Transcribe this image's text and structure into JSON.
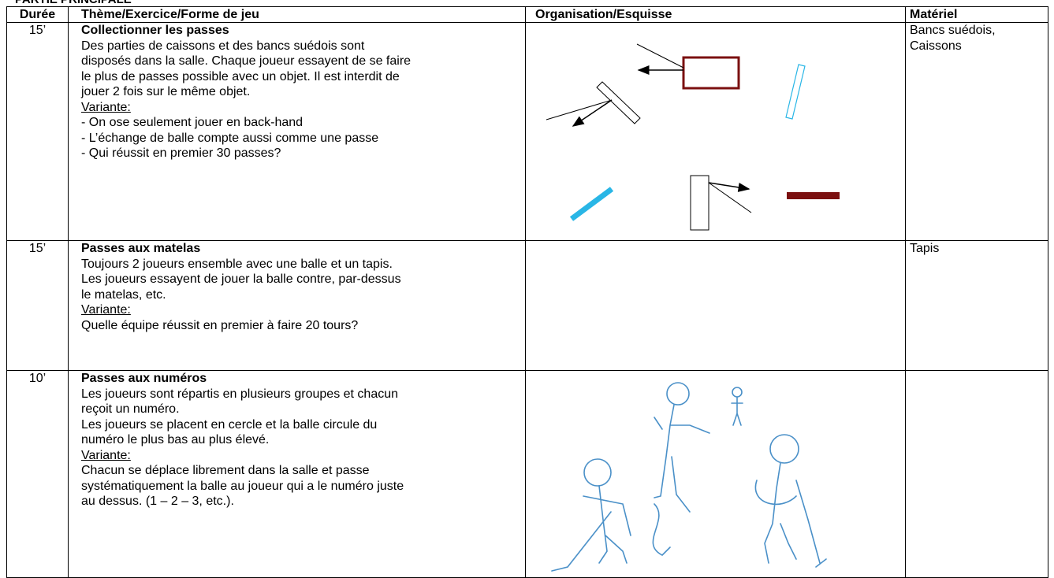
{
  "header": {
    "title": "PARTIE PRINCIPALE"
  },
  "table": {
    "columns": [
      "Durée",
      "Thème/Exercice/Forme de jeu",
      "Organisation/Esquisse",
      "Matériel"
    ],
    "rows": [
      {
        "duration": "15’",
        "title": "Collectionner les passes",
        "description": [
          "Des parties de caissons et des bancs suédois sont",
          "disposés dans la salle. Chaque joueur essayent de se faire",
          "le plus de passes possible avec un objet. Il est interdit de",
          "jouer 2 fois sur le même objet."
        ],
        "variant_label": "Variante:",
        "variant": [
          "- On ose seulement jouer en back-hand",
          "- L’échange de balle compte aussi comme une passe",
          "- Qui réussit en premier 30 passes?"
        ],
        "material": [
          "Bancs suédois,",
          "Caissons"
        ]
      },
      {
        "duration": "15’",
        "title": "Passes aux matelas",
        "description": [
          "Toujours 2 joueurs ensemble avec une balle et un tapis.",
          "Les joueurs essayent de jouer la balle contre, par-dessus",
          "le matelas, etc."
        ],
        "variant_label": "Variante:",
        "variant": [
          "Quelle équipe réussit en premier à faire 20 tours?"
        ],
        "material": [
          "Tapis"
        ]
      },
      {
        "duration": "10’",
        "title": "Passes aux numéros",
        "description": [
          "Les joueurs sont répartis en plusieurs groupes et chacun",
          "reçoit un numéro.",
          "Les joueurs se placent en cercle et la balle circule du",
          "numéro le plus bas au plus élevé."
        ],
        "variant_label": "Variante:",
        "variant": [
          "Chacun se déplace librement dans la salle et passe",
          "systématiquement la balle au joueur qui a le numéro juste",
          "au dessus. (1 – 2 – 3, etc.)."
        ],
        "material": []
      }
    ]
  }
}
